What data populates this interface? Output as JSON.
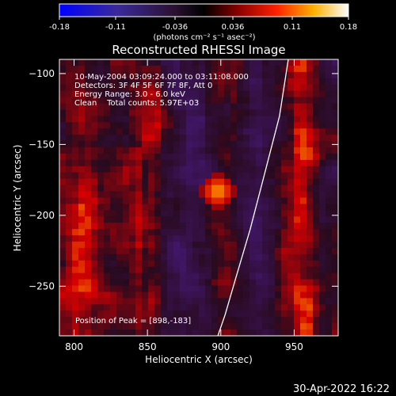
{
  "colorbar": {
    "ticks": [
      "-0.18",
      "-0.11",
      "-0.036",
      "0.036",
      "0.11",
      "0.18"
    ],
    "tick_values": [
      -0.18,
      -0.11,
      -0.036,
      0.036,
      0.11,
      0.18
    ],
    "range": [
      -0.18,
      0.18
    ],
    "unit_label": "(photons cm⁻² s⁻¹ asec⁻²)"
  },
  "chart_data": {
    "type": "heatmap",
    "title": "Reconstructed RHESSI Image",
    "xlabel": "Heliocentric X (arcsec)",
    "ylabel": "Heliocentric Y (arcsec)",
    "xlim": [
      790,
      980
    ],
    "ylim": [
      -285,
      -90
    ],
    "x_ticks": [
      800,
      850,
      900,
      950
    ],
    "y_ticks": [
      -100,
      -150,
      -200,
      -250
    ],
    "annotations": [
      "10-May-2004 03:09:24.000 to 03:11:08.000",
      "Detectors: 3F 4F 5F 6F 7F 8F, Att 0",
      "Energy Range: 3.0 - 6.0 keV",
      "Clean    Total counts: 5.97E+03"
    ],
    "peak_label": "Position of Peak = [898,-183]",
    "peak": {
      "x": 898,
      "y": -183
    },
    "limb_curve": [
      [
        946,
        -90
      ],
      [
        940,
        -130
      ],
      [
        930,
        -170
      ],
      [
        920,
        -210
      ],
      [
        910,
        -245
      ],
      [
        903,
        -270
      ],
      [
        898,
        -285
      ]
    ]
  },
  "footer": {
    "timestamp": "30-Apr-2022 16:22"
  },
  "colors": {
    "background": "#000000",
    "foreground": "#ffffff"
  }
}
